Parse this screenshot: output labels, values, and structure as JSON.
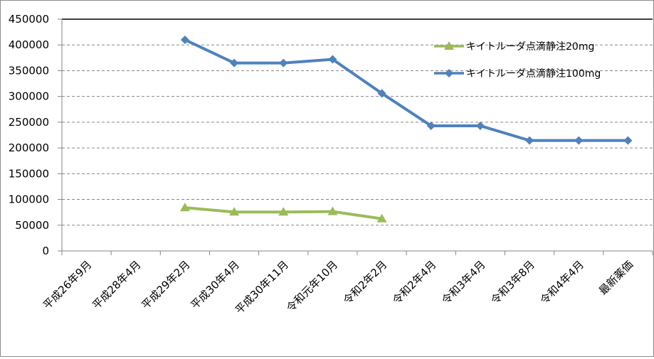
{
  "chart_data": {
    "type": "line",
    "categories": [
      "平成26年9月",
      "平成28年4月",
      "平成29年2月",
      "平成30年4月",
      "平成30年11月",
      "令和元年10月",
      "令和2年2月",
      "令和2年4月",
      "令和3年4月",
      "令和3年8月",
      "令和4年4月",
      "最新薬価"
    ],
    "series": [
      {
        "name": "キイトルーダ点滴静注20mg",
        "values": [
          null,
          null,
          84000,
          75500,
          75500,
          76500,
          62500,
          null,
          null,
          null,
          null,
          null
        ],
        "color": "#9bbb59",
        "marker": "triangle"
      },
      {
        "name": "キイトルーダ点滴静注100mg",
        "values": [
          null,
          null,
          410000,
          365000,
          365000,
          372000,
          306000,
          243000,
          243000,
          214500,
          214500,
          214500
        ],
        "color": "#4f81bd",
        "marker": "diamond"
      }
    ],
    "yticks": [
      "0",
      "50000",
      "100000",
      "150000",
      "200000",
      "250000",
      "300000",
      "350000",
      "400000",
      "450000"
    ],
    "ylim": [
      0,
      450000
    ],
    "ystep": 50000,
    "grid": true,
    "legend_position": "top-right"
  }
}
